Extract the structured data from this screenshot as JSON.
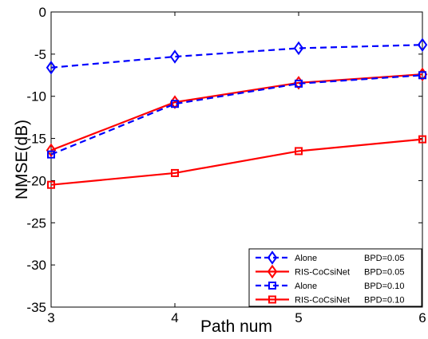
{
  "chart_data": {
    "type": "line",
    "xlabel": "Path num",
    "ylabel": "NMSE(dB)",
    "xlim": [
      3,
      6
    ],
    "ylim": [
      -35,
      0
    ],
    "x_ticks": [
      "3",
      "4",
      "5",
      "6"
    ],
    "y_ticks": [
      "0",
      "-5",
      "-10",
      "-15",
      "-20",
      "-25",
      "-30",
      "-35"
    ],
    "x": [
      3,
      4,
      5,
      6
    ],
    "grid": false,
    "legend_position": "bottom-right",
    "series": [
      {
        "name": "Alone",
        "bpd": "BPD=0.05",
        "values": [
          -6.6,
          -5.3,
          -4.3,
          -3.9
        ],
        "color": "#0000ff",
        "dash": "dashed",
        "marker": "diamond"
      },
      {
        "name": "RIS-CoCsiNet",
        "bpd": "BPD=0.05",
        "values": [
          -16.4,
          -10.7,
          -8.4,
          -7.4
        ],
        "color": "#ff0000",
        "dash": "solid",
        "marker": "diamond"
      },
      {
        "name": "Alone",
        "bpd": "BPD=0.10",
        "values": [
          -16.9,
          -10.9,
          -8.5,
          -7.5
        ],
        "color": "#0000ff",
        "dash": "dashed",
        "marker": "square"
      },
      {
        "name": "RIS-CoCsiNet",
        "bpd": "BPD=0.10",
        "values": [
          -20.5,
          -19.1,
          -16.5,
          -15.1
        ],
        "color": "#ff0000",
        "dash": "solid",
        "marker": "square"
      }
    ]
  }
}
